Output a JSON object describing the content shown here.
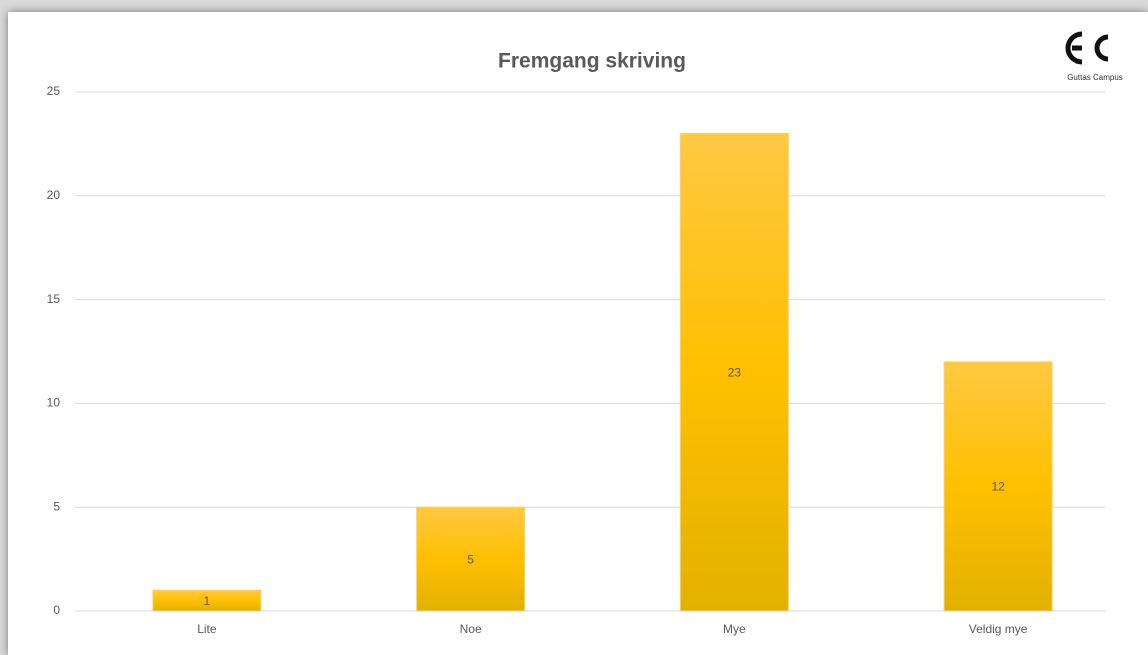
{
  "chart_data": {
    "type": "bar",
    "title": "Fremgang skriving",
    "logo_text": "Guttas Campus",
    "categories": [
      "Lite",
      "Noe",
      "Mye",
      "Veldig mye"
    ],
    "values": [
      1,
      5,
      23,
      12
    ],
    "color": "#ffc000",
    "ylim": [
      0,
      25
    ],
    "yticks": [
      0,
      5,
      10,
      15,
      20,
      25
    ],
    "grid": true
  }
}
